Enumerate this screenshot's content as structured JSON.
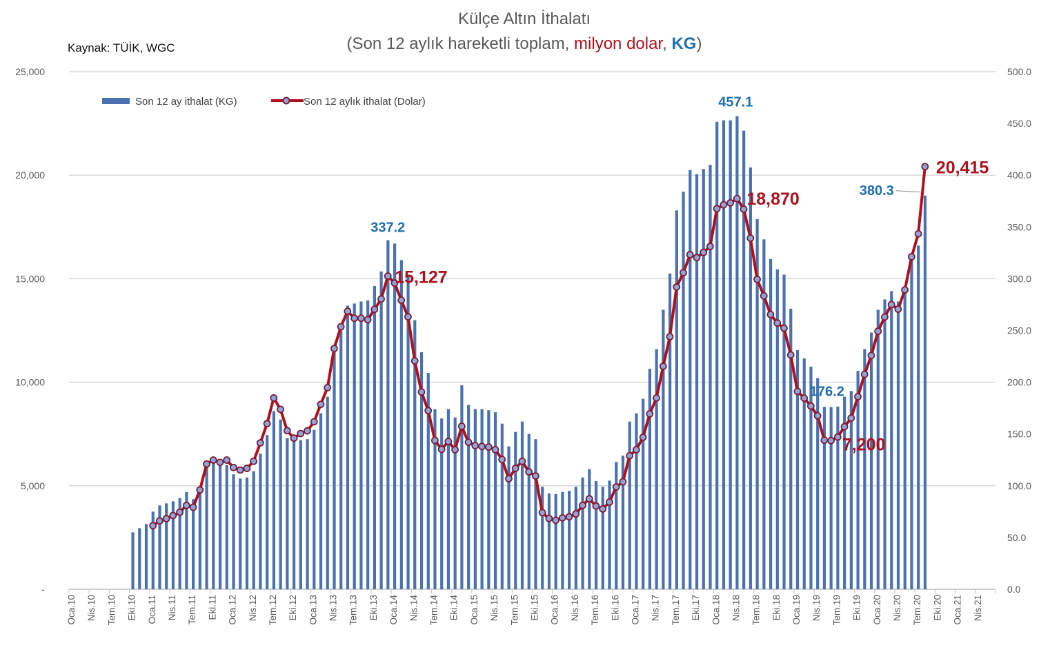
{
  "chart_data": {
    "type": "bar+line",
    "title": "Külçe Altın İthalatı",
    "subtitle_parts": [
      "(Son 12 aylık hareketli toplam, ",
      "milyon dolar",
      ", ",
      "KG",
      ")"
    ],
    "source": "Kaynak: TÜİK, WGC",
    "colors": {
      "bar": "#4a72b0",
      "line": "#b0101c",
      "marker_fill": "#8fa6d6",
      "marker_stroke": "#7a1c3a",
      "label_blue": "#1f6fae",
      "label_red": "#b0101c",
      "grid": "#d9d9d9"
    },
    "left_axis": {
      "ylim": [
        0,
        25000
      ],
      "ticks": [
        "-",
        "5,000",
        "10,000",
        "15,000",
        "20,000",
        "25,000"
      ]
    },
    "right_axis": {
      "ylim": [
        0,
        500
      ],
      "ticks": [
        "0.0",
        "50.0",
        "100.0",
        "150.0",
        "200.0",
        "250.0",
        "300.0",
        "350.0",
        "400.0",
        "450.0",
        "500.0"
      ]
    },
    "x_tick_labels": [
      "Oca.10",
      "Nis.10",
      "Tem.10",
      "Eki.10",
      "Oca.11",
      "Nis.11",
      "Tem.11",
      "Eki.11",
      "Oca.12",
      "Nis.12",
      "Tem.12",
      "Eki.12",
      "Oca.13",
      "Nis.13",
      "Tem.13",
      "Eki.13",
      "Oca.14",
      "Nis.14",
      "Tem.14",
      "Eki.14",
      "Oca.15",
      "Nis.15",
      "Tem.15",
      "Eki.15",
      "Oca.16",
      "Nis.16",
      "Tem.16",
      "Eki.16",
      "Oca.17",
      "Nis.17",
      "Tem.17",
      "Eki.17",
      "Oca.18",
      "Nis.18",
      "Tem.18",
      "Eki.18",
      "Oca.19",
      "Nis.19",
      "Tem.19",
      "Eki.19",
      "Oca.20",
      "Nis.20",
      "Tem.20",
      "Eki.20",
      "Oca.21",
      "Nis.21"
    ],
    "x_start": "Eki.10",
    "x_end": "Ağu.20",
    "legend": [
      "Son 12 ay ithalat (KG)",
      "Son 12 aylık ithalat (Dolar)"
    ],
    "legend_position": "top-left",
    "series": [
      {
        "name": "Son 12 ay ithalat (KG)",
        "axis": "right",
        "type": "bar",
        "values": [
          55,
          59,
          63,
          75,
          81,
          83,
          85,
          88,
          94,
          87,
          98,
          121,
          125,
          121,
          120,
          111,
          107,
          108,
          114,
          131,
          149,
          172,
          164,
          146,
          145,
          144,
          145,
          154,
          170,
          186,
          230,
          250,
          274,
          276,
          278,
          279,
          293,
          307,
          337.2,
          334,
          318,
          304,
          260,
          229,
          209,
          174,
          165,
          174,
          166,
          197,
          178,
          174,
          174,
          173,
          171,
          160,
          138,
          152,
          162,
          150,
          145,
          99,
          92.5,
          92,
          94,
          95,
          99,
          108,
          116,
          104.5,
          99,
          105,
          123,
          129,
          162,
          170,
          184,
          213,
          232,
          270,
          305,
          366,
          384,
          405,
          401,
          406,
          410,
          451.5,
          453,
          453,
          457.1,
          443,
          407.5,
          357.6,
          338,
          319,
          309,
          304,
          271,
          231,
          223,
          215,
          204,
          176.2,
          176,
          176.4,
          186,
          191.5,
          211,
          232,
          248,
          270,
          280,
          288,
          278,
          290,
          321,
          332,
          380.3
        ]
      },
      {
        "name": "Son 12 aylık ithalat (Dolar)",
        "axis": "left",
        "type": "line",
        "values": [
          null,
          null,
          null,
          3070,
          3300,
          3410,
          3560,
          3720,
          4050,
          3960,
          4800,
          6050,
          6240,
          6130,
          6240,
          5880,
          5760,
          5840,
          6180,
          7070,
          8000,
          9240,
          8690,
          7660,
          7300,
          7520,
          7650,
          8090,
          8930,
          9740,
          11630,
          12680,
          13430,
          13090,
          13090,
          13020,
          13520,
          14020,
          15127,
          14790,
          13960,
          13160,
          11030,
          9530,
          8630,
          7190,
          6760,
          7140,
          6740,
          7870,
          7100,
          6940,
          6900,
          6870,
          6740,
          6270,
          5340,
          5840,
          6180,
          5670,
          5470,
          3700,
          3420,
          3330,
          3450,
          3500,
          3640,
          4050,
          4370,
          4020,
          3880,
          4210,
          4940,
          5190,
          6450,
          6740,
          7340,
          8470,
          9240,
          10770,
          12200,
          14600,
          15290,
          16160,
          16020,
          16270,
          16560,
          18380,
          18570,
          18660,
          18870,
          18360,
          16960,
          14970,
          14170,
          13270,
          12860,
          12610,
          11320,
          9560,
          9230,
          8850,
          8380,
          7200,
          7180,
          7350,
          7850,
          8270,
          9300,
          10380,
          11290,
          12460,
          13150,
          13750,
          13530,
          14460,
          16060,
          17170,
          20415
        ]
      }
    ],
    "annotations": [
      {
        "text": "337.2",
        "series": 0,
        "index": 38,
        "color": "blue"
      },
      {
        "text": "457.1",
        "series": 0,
        "index": 90,
        "color": "blue"
      },
      {
        "text": "176.2",
        "series": 0,
        "index": 103,
        "color": "blue"
      },
      {
        "text": "380.3",
        "series": 0,
        "index": 118,
        "color": "blue"
      },
      {
        "text": "15,127",
        "series": 1,
        "index": 38,
        "color": "red"
      },
      {
        "text": "18,870",
        "series": 1,
        "index": 90,
        "color": "red"
      },
      {
        "text": "7,200",
        "series": 1,
        "index": 103,
        "color": "red"
      },
      {
        "text": "20,415",
        "series": 1,
        "index": 118,
        "color": "red"
      }
    ]
  }
}
